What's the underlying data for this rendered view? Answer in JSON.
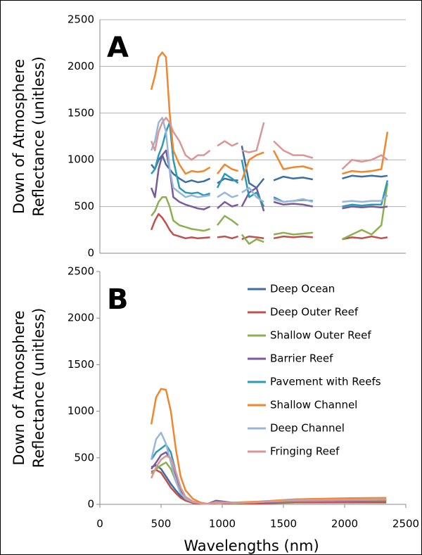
{
  "chart_data": [
    {
      "type": "line",
      "label": "A",
      "ylabel": [
        "Down of Atmosphere",
        "Reflectance (unitless)"
      ],
      "x": [
        420,
        450,
        480,
        510,
        540,
        570,
        600,
        650,
        700,
        750,
        800,
        850,
        900,
        930,
        960,
        1020,
        1080,
        1130,
        1145,
        1160,
        1220,
        1280,
        1340,
        1380,
        1420,
        1500,
        1580,
        1660,
        1740,
        1870,
        1980,
        2060,
        2140,
        2220,
        2300,
        2350
      ],
      "xlim": [
        0,
        2500
      ],
      "ylim": [
        0,
        2500
      ],
      "yticks": [
        0,
        500,
        1000,
        1500,
        2000,
        2500
      ],
      "grid": true,
      "series": [
        {
          "color": "#3a6ea5",
          "values": [
            950,
            900,
            1000,
            1050,
            950,
            900,
            850,
            800,
            760,
            780,
            760,
            770,
            800,
            null,
            750,
            800,
            780,
            780,
            null,
            1150,
            750,
            700,
            800,
            null,
            780,
            820,
            800,
            810,
            790,
            null,
            800,
            830,
            820,
            830,
            820,
            830
          ]
        },
        {
          "color": "#c0504d",
          "values": [
            250,
            350,
            420,
            380,
            320,
            250,
            200,
            180,
            160,
            170,
            160,
            165,
            170,
            null,
            170,
            180,
            160,
            180,
            null,
            150,
            180,
            170,
            160,
            null,
            160,
            180,
            170,
            180,
            170,
            null,
            150,
            170,
            160,
            180,
            160,
            170
          ]
        },
        {
          "color": "#8cb050",
          "values": [
            400,
            450,
            550,
            600,
            600,
            500,
            350,
            300,
            280,
            260,
            250,
            240,
            260,
            null,
            300,
            400,
            350,
            300,
            null,
            200,
            100,
            150,
            120,
            null,
            200,
            220,
            200,
            210,
            220,
            null,
            150,
            200,
            250,
            200,
            300,
            750
          ]
        },
        {
          "color": "#7a5a9a",
          "values": [
            700,
            600,
            900,
            1050,
            1100,
            900,
            600,
            550,
            520,
            500,
            480,
            470,
            500,
            null,
            480,
            550,
            500,
            520,
            null,
            500,
            650,
            700,
            450,
            null,
            550,
            520,
            530,
            520,
            500,
            null,
            480,
            500,
            490,
            500,
            490,
            500
          ]
        },
        {
          "color": "#2b9bb5",
          "values": [
            850,
            900,
            1050,
            1150,
            1300,
            1400,
            1000,
            700,
            650,
            640,
            650,
            620,
            640,
            null,
            700,
            850,
            800,
            750,
            null,
            1000,
            600,
            650,
            500,
            null,
            600,
            550,
            560,
            570,
            560,
            null,
            500,
            520,
            510,
            520,
            520,
            780
          ]
        },
        {
          "color": "#f0862d",
          "values": [
            1750,
            1900,
            2100,
            2150,
            2100,
            1500,
            1100,
            950,
            850,
            880,
            870,
            880,
            920,
            null,
            850,
            950,
            900,
            880,
            null,
            780,
            1000,
            1050,
            1080,
            null,
            1100,
            900,
            920,
            930,
            900,
            null,
            850,
            880,
            870,
            880,
            900,
            1300
          ]
        },
        {
          "color": "#9ab5dc",
          "values": [
            1100,
            1200,
            1400,
            1450,
            1300,
            900,
            700,
            650,
            600,
            620,
            600,
            610,
            620,
            null,
            600,
            650,
            600,
            620,
            null,
            650,
            700,
            600,
            550,
            null,
            580,
            550,
            560,
            580,
            550,
            null,
            550,
            560,
            550,
            560,
            560,
            620
          ]
        },
        {
          "color": "#d99694",
          "values": [
            1200,
            1100,
            1300,
            1400,
            1450,
            1400,
            1300,
            1200,
            1050,
            1000,
            1050,
            1050,
            1100,
            null,
            1150,
            1200,
            1150,
            1180,
            null,
            1100,
            1080,
            1100,
            1400,
            null,
            1200,
            1100,
            1050,
            1050,
            1020,
            null,
            900,
            1000,
            980,
            1000,
            1050,
            1000
          ]
        }
      ]
    },
    {
      "type": "line",
      "label": "B",
      "ylabel": [
        "Down of Atmosphere",
        "Reflectance (unitless)"
      ],
      "xlabel": "Wavelengths (nm)",
      "x": [
        420,
        460,
        500,
        540,
        580,
        620,
        660,
        700,
        760,
        820,
        880,
        950,
        1100,
        1300,
        1600,
        2000,
        2340
      ],
      "xlim": [
        0,
        2500
      ],
      "xticks": [
        0,
        500,
        1000,
        1500,
        2000,
        2500
      ],
      "ylim": [
        0,
        2500
      ],
      "yticks": [
        0,
        500,
        1000,
        1500,
        2000,
        2500
      ],
      "grid": false,
      "legend": "upper right",
      "series": [
        {
          "name": "Deep Ocean",
          "color": "#3a6ea5",
          "values": [
            400,
            420,
            380,
            300,
            220,
            150,
            90,
            50,
            20,
            10,
            5,
            30,
            10,
            15,
            25,
            30,
            30
          ]
        },
        {
          "name": "Deep Outer Reef",
          "color": "#c0504d",
          "values": [
            350,
            370,
            340,
            260,
            180,
            120,
            70,
            40,
            15,
            5,
            5,
            20,
            5,
            10,
            20,
            20,
            20
          ]
        },
        {
          "name": "Shallow  Outer Reef",
          "color": "#8cb050",
          "values": [
            330,
            380,
            420,
            450,
            380,
            250,
            130,
            60,
            25,
            10,
            5,
            25,
            10,
            20,
            30,
            35,
            40
          ]
        },
        {
          "name": "Barrier Reef",
          "color": "#7a5a9a",
          "values": [
            380,
            450,
            530,
            560,
            480,
            320,
            160,
            70,
            25,
            10,
            5,
            40,
            15,
            20,
            35,
            40,
            45
          ]
        },
        {
          "name": "Pavement with Reefs",
          "color": "#2b9bb5",
          "values": [
            480,
            560,
            600,
            640,
            560,
            350,
            180,
            80,
            30,
            10,
            5,
            20,
            15,
            25,
            45,
            50,
            55
          ]
        },
        {
          "name": "Shallow Channel",
          "color": "#f0862d",
          "values": [
            860,
            1150,
            1240,
            1230,
            1000,
            600,
            300,
            150,
            60,
            20,
            5,
            15,
            20,
            30,
            55,
            65,
            70
          ]
        },
        {
          "name": "Deep Channel",
          "color": "#9ab5dc",
          "values": [
            480,
            700,
            770,
            650,
            450,
            250,
            120,
            60,
            25,
            10,
            5,
            20,
            15,
            25,
            45,
            50,
            55
          ]
        },
        {
          "name": "Fringing Reef",
          "color": "#d99694",
          "values": [
            280,
            400,
            480,
            520,
            500,
            350,
            180,
            80,
            30,
            10,
            5,
            25,
            15,
            25,
            40,
            45,
            50
          ]
        }
      ]
    }
  ]
}
